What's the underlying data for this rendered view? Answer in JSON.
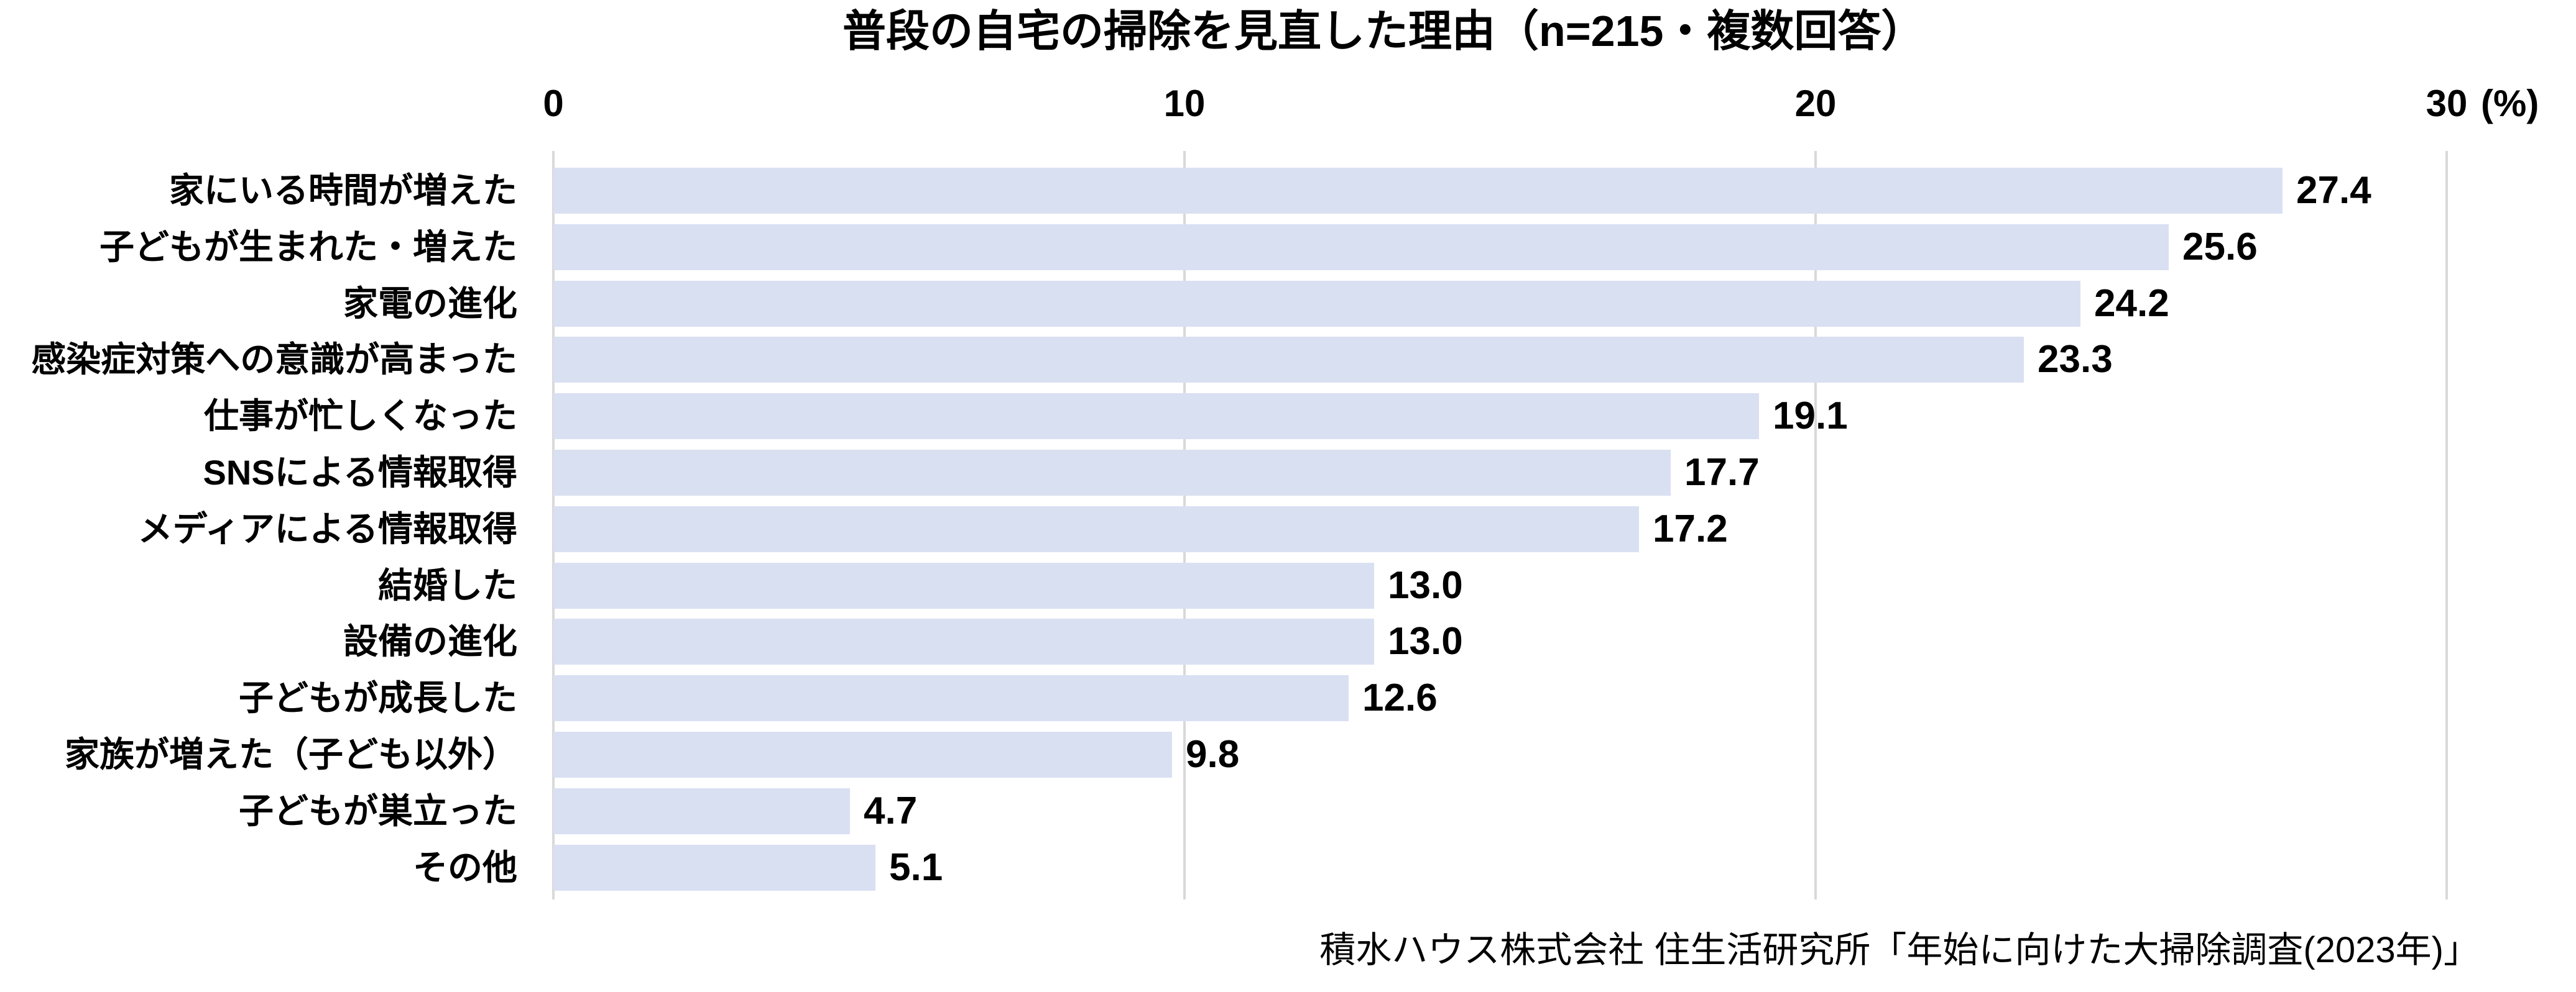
{
  "title": "普段の自宅の掃除を見直した理由（n=215・複数回答）",
  "source": "積水ハウス株式会社 住生活研究所「年始に向けた大掃除調査(2023年)」",
  "chart_data": {
    "type": "bar",
    "orientation": "horizontal",
    "title": "普段の自宅の掃除を見直した理由（n=215・複数回答）",
    "sample_size_label": "n=215・複数回答",
    "categories": [
      "家にいる時間が増えた",
      "子どもが生まれた・増えた",
      "家電の進化",
      "感染症対策への意識が高まった",
      "仕事が忙しくなった",
      "SNSによる情報取得",
      "メディアによる情報取得",
      "結婚した",
      "設備の進化",
      "子どもが成長した",
      "家族が増えた（子ども以外）",
      "子どもが巣立った",
      "その他"
    ],
    "values": [
      27.4,
      25.6,
      24.2,
      23.3,
      19.1,
      17.7,
      17.2,
      13.0,
      13.0,
      12.6,
      9.8,
      4.7,
      5.1
    ],
    "value_decimals": 1,
    "xlim": [
      0,
      30
    ],
    "x_ticks": [
      0,
      10,
      20,
      30
    ],
    "x_unit_label": "(%)",
    "grid": "vertical",
    "legend": "none",
    "bar_color": "#D9E0F2",
    "gridline_color": "#D9D9D9",
    "text_color": "#000000",
    "background_color": "#FFFFFF",
    "source": "積水ハウス株式会社 住生活研究所「年始に向けた大掃除調査(2023年)」"
  }
}
